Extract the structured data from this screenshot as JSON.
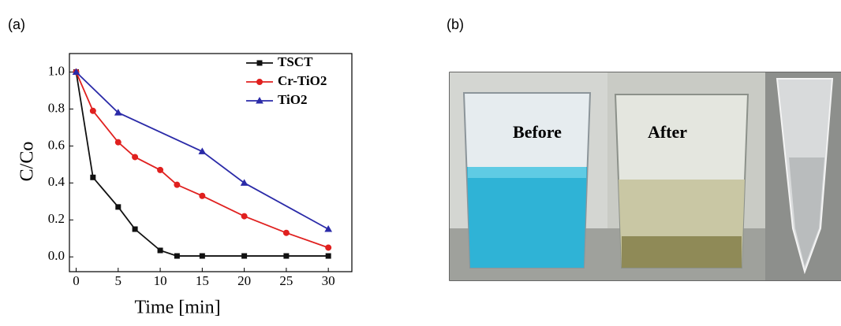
{
  "chart_data": {
    "type": "line",
    "panel_label": "(a)",
    "x_label": "Time [min]",
    "y_label": "C/Co",
    "xlim": [
      -0.8,
      32.8
    ],
    "ylim": [
      -0.08,
      1.1
    ],
    "xticks": [
      0,
      5,
      10,
      15,
      20,
      25,
      30
    ],
    "yticks": [
      {
        "value": 0,
        "label": "0.0"
      },
      0.2,
      0.4,
      0.6,
      0.8,
      {
        "value": 1,
        "label": "1.0"
      }
    ],
    "series": [
      {
        "name": "TSCT",
        "color": "#111111",
        "marker": "square",
        "x": [
          0,
          2,
          5,
          7,
          10,
          12,
          15,
          20,
          25,
          30
        ],
        "values": [
          1.0,
          0.43,
          0.27,
          0.15,
          0.035,
          0.005,
          0.005,
          0.005,
          0.005,
          0.005
        ]
      },
      {
        "name": "Cr-TiO2",
        "color": "#e0201f",
        "marker": "circle",
        "x": [
          0,
          2,
          5,
          7,
          10,
          12,
          15,
          20,
          25,
          30
        ],
        "values": [
          1.0,
          0.79,
          0.62,
          0.54,
          0.47,
          0.39,
          0.33,
          0.22,
          0.13,
          0.05
        ]
      },
      {
        "name": "TiO2",
        "color": "#2a2aa8",
        "marker": "triangle",
        "x": [
          0,
          5,
          15,
          20,
          30
        ],
        "values": [
          1.0,
          0.78,
          0.57,
          0.4,
          0.15
        ]
      }
    ]
  },
  "photo": {
    "panel_label": "(b)",
    "labels": [
      "Before",
      "After"
    ]
  }
}
